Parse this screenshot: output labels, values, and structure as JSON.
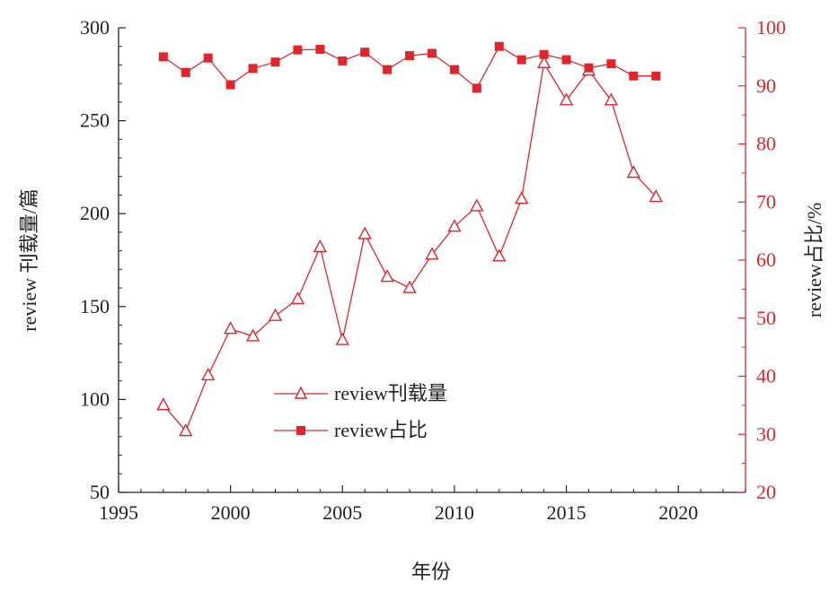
{
  "chart_data": {
    "type": "line",
    "xlabel": "年份",
    "ylabel": "review 刊载量/篇",
    "y2label": "review占比/%",
    "xlim": [
      1995,
      2023
    ],
    "ylim": [
      50,
      300
    ],
    "y2lim": [
      20,
      100
    ],
    "xticks": [
      1995,
      2000,
      2005,
      2010,
      2015,
      2020
    ],
    "yticks": [
      50,
      100,
      150,
      200,
      250,
      300
    ],
    "y2ticks": [
      20,
      30,
      40,
      50,
      60,
      70,
      80,
      90,
      100
    ],
    "grid": false,
    "legend_position": "center",
    "colors": {
      "series": "#e0262b",
      "axis_left": "#222222",
      "axis_right": "#e0262b"
    },
    "series": [
      {
        "name": "review刊载量",
        "axis": "left",
        "marker": "open-triangle",
        "x": [
          1997,
          1998,
          1999,
          2000,
          2001,
          2002,
          2003,
          2004,
          2005,
          2006,
          2007,
          2008,
          2009,
          2010,
          2011,
          2012,
          2013,
          2014,
          2015,
          2016,
          2017,
          2018,
          2019
        ],
        "values": [
          97,
          83,
          113,
          138,
          134,
          145,
          154,
          182,
          132,
          189,
          166,
          160,
          178,
          193,
          204,
          177,
          208,
          281,
          261,
          277,
          261,
          222,
          209
        ]
      },
      {
        "name": "review占比",
        "axis": "right",
        "marker": "filled-square",
        "x": [
          1997,
          1998,
          1999,
          2000,
          2001,
          2002,
          2003,
          2004,
          2005,
          2006,
          2007,
          2008,
          2009,
          2010,
          2011,
          2012,
          2013,
          2014,
          2015,
          2016,
          2017,
          2018,
          2019
        ],
        "values": [
          95,
          92.3,
          94.8,
          90.2,
          93,
          94.1,
          96.2,
          96.3,
          94.3,
          95.8,
          92.8,
          95.2,
          95.6,
          92.8,
          89.6,
          96.8,
          94.5,
          95.4,
          94.5,
          93.1,
          93.8,
          91.7,
          91.7
        ]
      }
    ]
  }
}
